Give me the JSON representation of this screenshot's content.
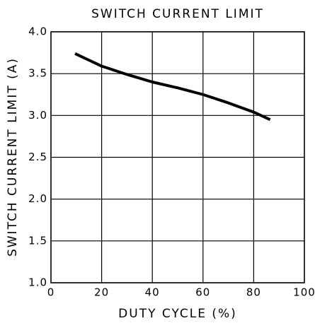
{
  "chart_data": {
    "type": "line",
    "title": "SWITCH CURRENT LIMIT",
    "xlabel": "DUTY CYCLE (%)",
    "ylabel": "SWITCH CURRENT LIMIT (A)",
    "x": [
      9.5,
      20,
      30,
      40,
      50,
      60,
      70,
      80,
      86.5
    ],
    "values": [
      3.74,
      3.59,
      3.49,
      3.4,
      3.33,
      3.25,
      3.15,
      3.04,
      2.95
    ],
    "color": "#000000",
    "xlim": [
      0,
      100
    ],
    "xticks": [
      0,
      20,
      40,
      60,
      80,
      100
    ],
    "ylim": [
      1,
      4
    ],
    "yticks": [
      {
        "value": 1,
        "label": "1.0"
      },
      {
        "value": 1.5,
        "label": "1.5"
      },
      {
        "value": 2,
        "label": "2.0"
      },
      {
        "value": 2.5,
        "label": "2.5"
      },
      {
        "value": 3,
        "label": "3.0"
      },
      {
        "value": 3.5,
        "label": "3.5"
      },
      {
        "value": 4,
        "label": "4.0"
      }
    ],
    "grid": true
  }
}
